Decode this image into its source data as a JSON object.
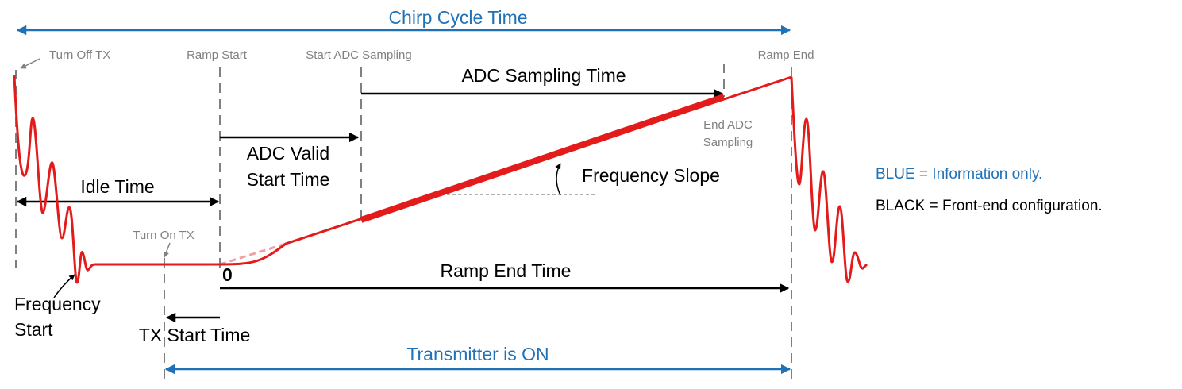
{
  "title": "Chirp Cycle Time",
  "events": {
    "turn_off_tx": "Turn Off TX",
    "ramp_start": "Ramp Start",
    "start_adc_sampling": "Start ADC Sampling",
    "ramp_end": "Ramp End",
    "end_adc_sampling": [
      "End ADC",
      "Sampling"
    ],
    "turn_on_tx": "Turn On TX"
  },
  "intervals": {
    "adc_sampling_time": "ADC Sampling Time",
    "adc_valid_start_time": [
      "ADC Valid",
      "Start Time"
    ],
    "idle_time": "Idle Time",
    "ramp_end_time": "Ramp End Time",
    "tx_start_time": "TX Start Time",
    "transmitter_on": "Transmitter is ON"
  },
  "annotations": {
    "frequency_slope": "Frequency Slope",
    "frequency_start": [
      "Frequency",
      "Start"
    ],
    "zero": "0"
  },
  "legend": {
    "blue": "BLUE = Information only.",
    "black": "BLACK = Front-end configuration."
  }
}
